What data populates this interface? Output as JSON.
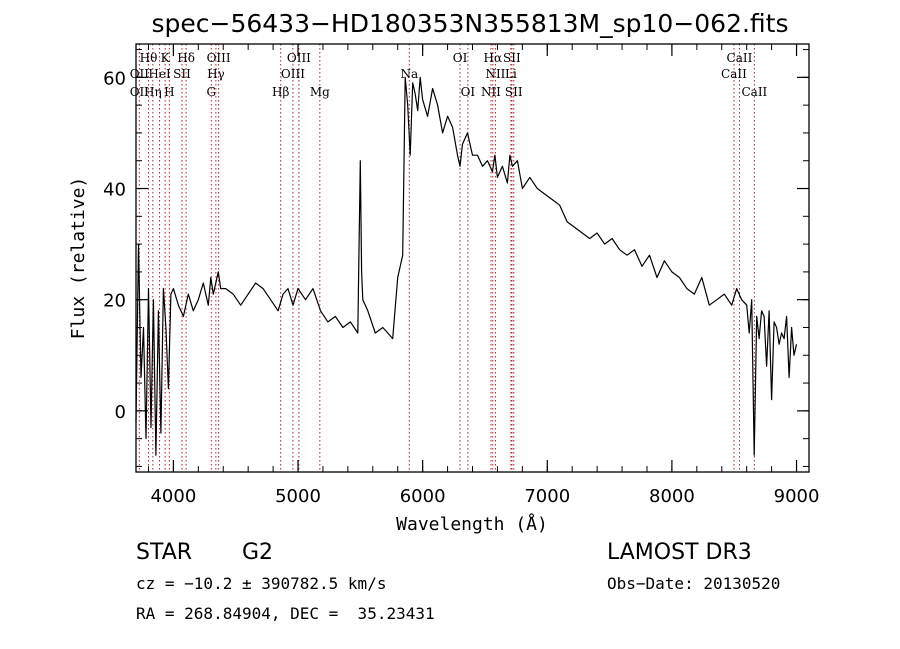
{
  "chart_data": {
    "type": "line",
    "title": "spec−56433−HD180353N355813M_sp10−062.fits",
    "xlabel": "Wavelength (Å)",
    "ylabel": "Flux (relative)",
    "xlim": [
      3700,
      9100
    ],
    "ylim": [
      -11,
      66
    ],
    "xticks": [
      4000,
      5000,
      6000,
      7000,
      8000,
      9000
    ],
    "yticks": [
      0,
      20,
      40,
      60
    ],
    "series": [
      {
        "name": "flux",
        "x": [
          3700,
          3720,
          3740,
          3760,
          3780,
          3800,
          3820,
          3840,
          3860,
          3880,
          3900,
          3920,
          3940,
          3960,
          3980,
          4000,
          4040,
          4080,
          4120,
          4160,
          4200,
          4240,
          4280,
          4300,
          4320,
          4340,
          4360,
          4380,
          4420,
          4480,
          4540,
          4600,
          4660,
          4720,
          4780,
          4840,
          4880,
          4920,
          4960,
          5000,
          5060,
          5120,
          5180,
          5240,
          5300,
          5360,
          5420,
          5480,
          5500,
          5510,
          5520,
          5560,
          5620,
          5680,
          5720,
          5760,
          5800,
          5840,
          5860,
          5880,
          5900,
          5920,
          5940,
          5960,
          5980,
          6000,
          6040,
          6080,
          6120,
          6160,
          6200,
          6240,
          6280,
          6300,
          6320,
          6360,
          6400,
          6440,
          6480,
          6520,
          6560,
          6580,
          6600,
          6640,
          6680,
          6700,
          6720,
          6760,
          6800,
          6860,
          6920,
          6980,
          7040,
          7100,
          7160,
          7220,
          7280,
          7340,
          7400,
          7460,
          7520,
          7580,
          7640,
          7700,
          7760,
          7820,
          7880,
          7940,
          8000,
          8060,
          8120,
          8180,
          8240,
          8300,
          8360,
          8420,
          8480,
          8520,
          8560,
          8600,
          8620,
          8640,
          8660,
          8680,
          8700,
          8720,
          8740,
          8760,
          8780,
          8800,
          8820,
          8840,
          8860,
          8880,
          8900,
          8920,
          8940,
          8960,
          8980,
          9000
        ],
        "y": [
          -2,
          30,
          6,
          15,
          -5,
          22,
          -3,
          20,
          -8,
          18,
          -4,
          22,
          15,
          4,
          21,
          22,
          19,
          17,
          21,
          18,
          20,
          23,
          19,
          24,
          21,
          23,
          25,
          22,
          22,
          21,
          19,
          21,
          23,
          22,
          20,
          18,
          21,
          22,
          19,
          22,
          20,
          22,
          18,
          16,
          17,
          15,
          16,
          14,
          45,
          25,
          20,
          18,
          14,
          15,
          14,
          13,
          24,
          28,
          60,
          55,
          46,
          59,
          57,
          54,
          60,
          56,
          53,
          58,
          55,
          50,
          53,
          51,
          46,
          44,
          48,
          50,
          46,
          46,
          44,
          45,
          43,
          46,
          42,
          44,
          41,
          46,
          44,
          45,
          40,
          42,
          40,
          39,
          38,
          37,
          34,
          33,
          32,
          31,
          32,
          30,
          31,
          29,
          28,
          29,
          26,
          28,
          24,
          27,
          25,
          24,
          22,
          21,
          24,
          19,
          20,
          21,
          19,
          22,
          20,
          19,
          14,
          20,
          -8,
          17,
          13,
          18,
          17,
          8,
          18,
          2,
          16,
          15,
          12,
          14,
          13,
          17,
          6,
          15,
          10,
          12
        ]
      }
    ],
    "line_labels": [
      {
        "name": "Hθ",
        "x": 3800,
        "row": 1
      },
      {
        "name": "OII",
        "x": 3727,
        "row": 2
      },
      {
        "name": "OII",
        "x": 3727,
        "row": 3
      },
      {
        "name": "K",
        "x": 3934,
        "row": 1
      },
      {
        "name": "HeI",
        "x": 3889,
        "row": 2
      },
      {
        "name": "Hη",
        "x": 3835,
        "row": 3
      },
      {
        "name": "Hδ",
        "x": 4102,
        "row": 1
      },
      {
        "name": "SII",
        "x": 4069,
        "row": 2
      },
      {
        "name": "H",
        "x": 3968,
        "row": 3
      },
      {
        "name": "OIII",
        "x": 4363,
        "row": 1
      },
      {
        "name": "Hγ",
        "x": 4341,
        "row": 2
      },
      {
        "name": "G",
        "x": 4304,
        "row": 3
      },
      {
        "name": "OIII",
        "x": 5007,
        "row": 1
      },
      {
        "name": "OIII",
        "x": 4959,
        "row": 2
      },
      {
        "name": "Hβ",
        "x": 4861,
        "row": 3
      },
      {
        "name": "Mg",
        "x": 5175,
        "row": 3
      },
      {
        "name": "Na",
        "x": 5893,
        "row": 2
      },
      {
        "name": "OI",
        "x": 6300,
        "row": 1
      },
      {
        "name": "OI",
        "x": 6363,
        "row": 3
      },
      {
        "name": "Hα",
        "x": 6563,
        "row": 1
      },
      {
        "name": "SII",
        "x": 6716,
        "row": 1
      },
      {
        "name": "NII",
        "x": 6584,
        "row": 2
      },
      {
        "name": "Li",
        "x": 6708,
        "row": 2
      },
      {
        "name": "NII",
        "x": 6548,
        "row": 3
      },
      {
        "name": "SII",
        "x": 6731,
        "row": 3
      },
      {
        "name": "CaII",
        "x": 8542,
        "row": 1
      },
      {
        "name": "CaII",
        "x": 8498,
        "row": 2
      },
      {
        "name": "CaII",
        "x": 8662,
        "row": 3
      }
    ]
  },
  "info": {
    "class": "STAR",
    "subclass": "G2",
    "survey": "LAMOST DR3",
    "cz": "cz = −10.2 ± 390782.5 km/s",
    "obs_date": "Obs−Date: 20130520",
    "coords": "RA = 268.84904, DEC =  35.23431"
  }
}
